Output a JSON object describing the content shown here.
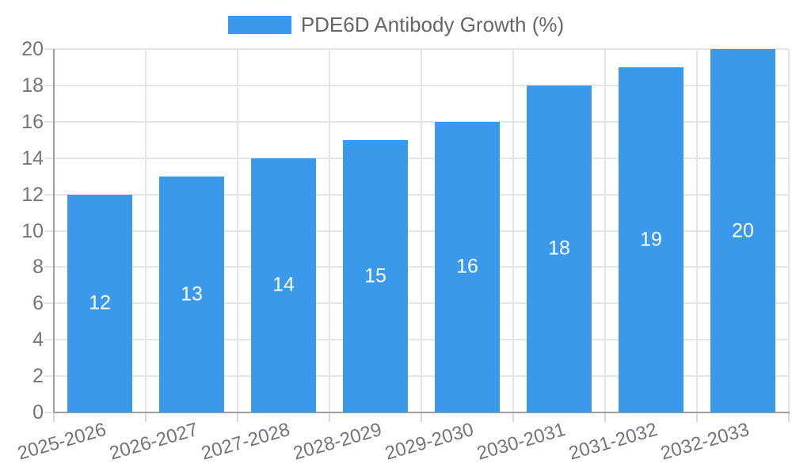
{
  "legend": {
    "label": "PDE6D Antibody Growth (%)"
  },
  "chart_data": {
    "type": "bar",
    "title": "PDE6D Antibody Growth (%)",
    "series_name": "PDE6D Antibody Growth (%)",
    "categories": [
      "2025-2026",
      "2026-2027",
      "2027-2028",
      "2028-2029",
      "2029-2030",
      "2030-2031",
      "2031-2032",
      "2032-2033"
    ],
    "values": [
      12,
      13,
      14,
      15,
      16,
      18,
      19,
      20
    ],
    "value_labels_shown": [
      12,
      13,
      14,
      15,
      16,
      18,
      19,
      20
    ],
    "ylim": [
      0,
      20
    ],
    "ytick_step": 2,
    "ytick_labels": [
      "0",
      "2",
      "4",
      "6",
      "8",
      "10",
      "12",
      "14",
      "16",
      "18",
      "20"
    ],
    "grid": true,
    "legend_position": "top",
    "value_label_position": "inside-center"
  },
  "colors": {
    "bar": "#3b99ec",
    "axis": "#9e9e9e",
    "grid": "#e5e5e5",
    "bottom_tick": "#d6d6d6",
    "axis_label": "#757575",
    "legend_text": "#666666",
    "value_label": "#ffffff",
    "background": "#ffffff"
  }
}
